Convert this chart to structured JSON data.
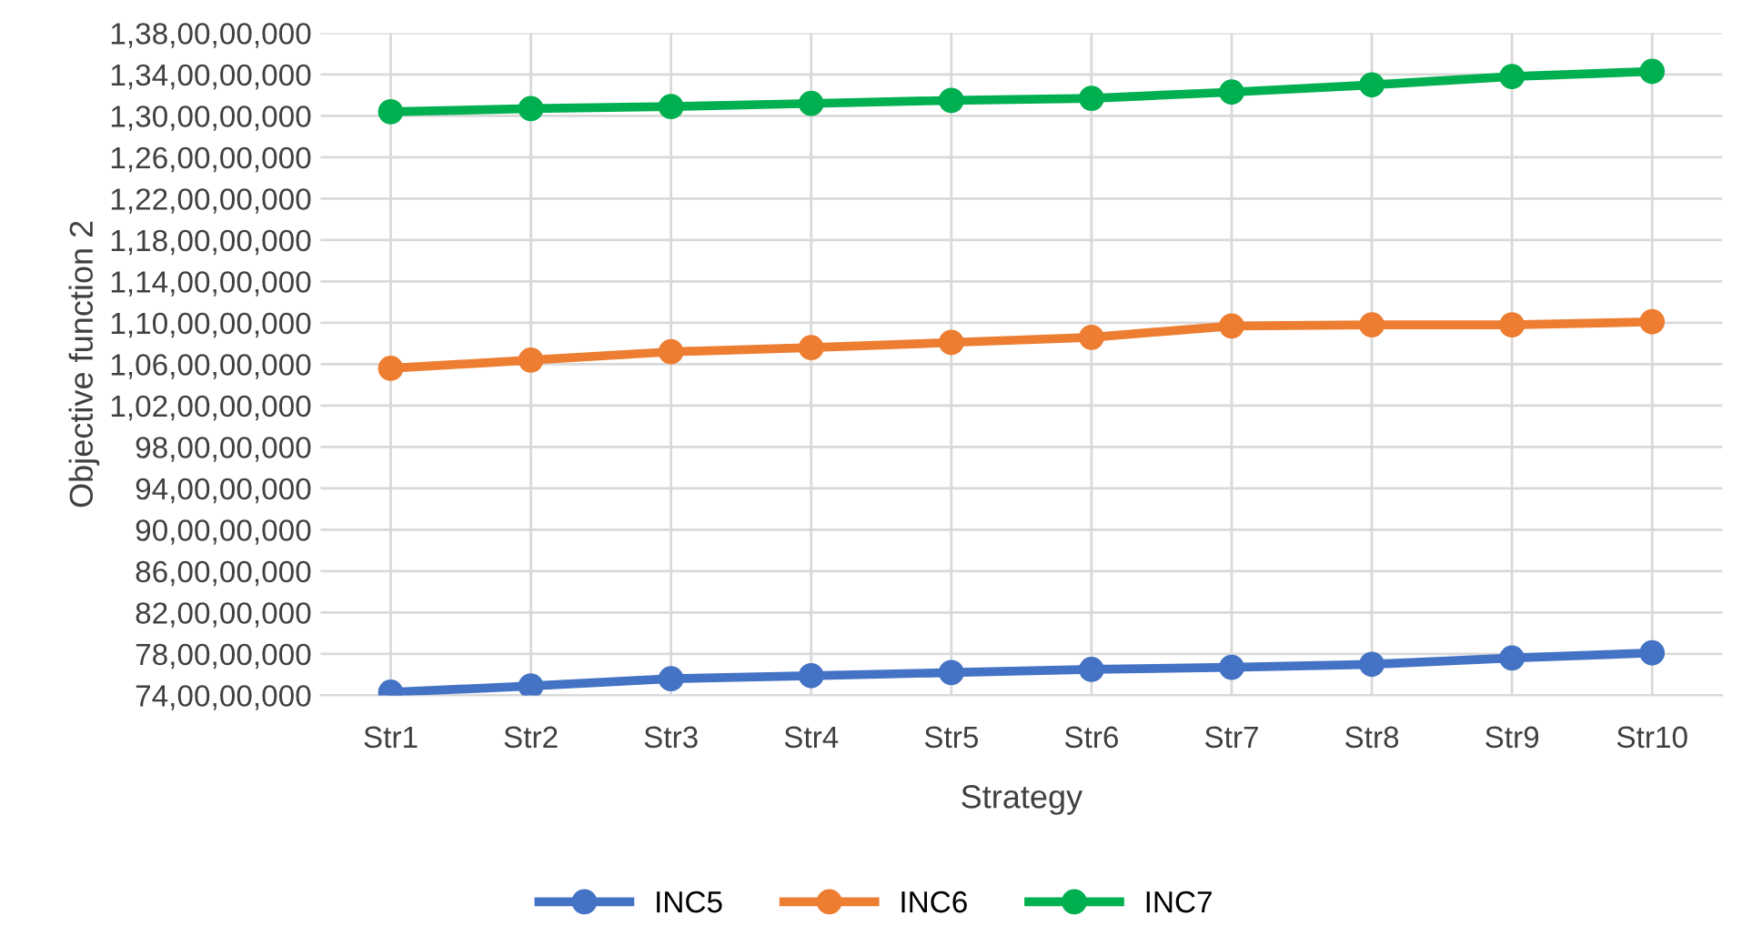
{
  "chart_data": {
    "type": "line",
    "xlabel": "Strategy",
    "ylabel": "Objective function 2",
    "categories": [
      "Str1",
      "Str2",
      "Str3",
      "Str4",
      "Str5",
      "Str6",
      "Str7",
      "Str8",
      "Str9",
      "Str10"
    ],
    "series": [
      {
        "name": "INC5",
        "color": "#4472c4",
        "values": [
          743000000,
          749000000,
          756000000,
          759000000,
          762000000,
          765000000,
          767000000,
          770000000,
          776000000,
          781000000
        ]
      },
      {
        "name": "INC6",
        "color": "#ed7d31",
        "values": [
          1056000000,
          1064000000,
          1072000000,
          1076000000,
          1081000000,
          1086000000,
          1097000000,
          1098000000,
          1098000000,
          1101000000
        ]
      },
      {
        "name": "INC7",
        "color": "#00b050",
        "values": [
          1304000000,
          1307000000,
          1309000000,
          1312000000,
          1315000000,
          1317000000,
          1323000000,
          1330000000,
          1338000000,
          1343000000
        ]
      }
    ],
    "ylim": [
      740000000,
      1380000000
    ],
    "yticks": [
      {
        "value": 740000000,
        "label": "74,00,00,000"
      },
      {
        "value": 780000000,
        "label": "78,00,00,000"
      },
      {
        "value": 820000000,
        "label": "82,00,00,000"
      },
      {
        "value": 860000000,
        "label": "86,00,00,000"
      },
      {
        "value": 900000000,
        "label": "90,00,00,000"
      },
      {
        "value": 940000000,
        "label": "94,00,00,000"
      },
      {
        "value": 980000000,
        "label": "98,00,00,000"
      },
      {
        "value": 1020000000,
        "label": "1,02,00,00,000"
      },
      {
        "value": 1060000000,
        "label": "1,06,00,00,000"
      },
      {
        "value": 1100000000,
        "label": "1,10,00,00,000"
      },
      {
        "value": 1140000000,
        "label": "1,14,00,00,000"
      },
      {
        "value": 1180000000,
        "label": "1,18,00,00,000"
      },
      {
        "value": 1220000000,
        "label": "1,22,00,00,000"
      },
      {
        "value": 1260000000,
        "label": "1,26,00,00,000"
      },
      {
        "value": 1300000000,
        "label": "1,30,00,00,000"
      },
      {
        "value": 1340000000,
        "label": "1,34,00,00,000"
      },
      {
        "value": 1380000000,
        "label": "1,38,00,00,000"
      }
    ],
    "grid": true,
    "legend": "bottom",
    "marker": "circle",
    "line_style": "solid"
  }
}
